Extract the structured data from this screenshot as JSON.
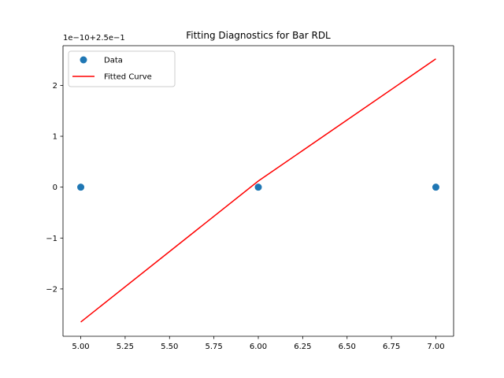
{
  "chart_data": {
    "type": "scatter",
    "title": "Fitting Diagnostics for Bar RDL",
    "xlabel": "",
    "ylabel": "",
    "y_offset_label": "1e−10+2.5e−1",
    "xlim": [
      4.9,
      7.1
    ],
    "ylim": [
      -2.93,
      2.78
    ],
    "x_ticks": [
      5.0,
      5.25,
      5.5,
      5.75,
      6.0,
      6.25,
      6.5,
      6.75,
      7.0
    ],
    "x_tick_labels": [
      "5.00",
      "5.25",
      "5.50",
      "5.75",
      "6.00",
      "6.25",
      "6.50",
      "6.75",
      "7.00"
    ],
    "y_ticks": [
      -2,
      -1,
      0,
      1,
      2
    ],
    "y_tick_labels": [
      "−2",
      "−1",
      "0",
      "1",
      "2"
    ],
    "grid": false,
    "legend_position": "top-left",
    "series": [
      {
        "name": "Data",
        "kind": "scatter",
        "color": "#1f77b4",
        "x": [
          5.0,
          6.0,
          7.0
        ],
        "y": [
          0,
          0,
          0
        ]
      },
      {
        "name": "Fitted Curve",
        "kind": "line",
        "color": "#ff0000",
        "x": [
          5.0,
          6.0,
          7.0
        ],
        "y": [
          -2.65,
          0.12,
          2.52
        ]
      }
    ]
  }
}
